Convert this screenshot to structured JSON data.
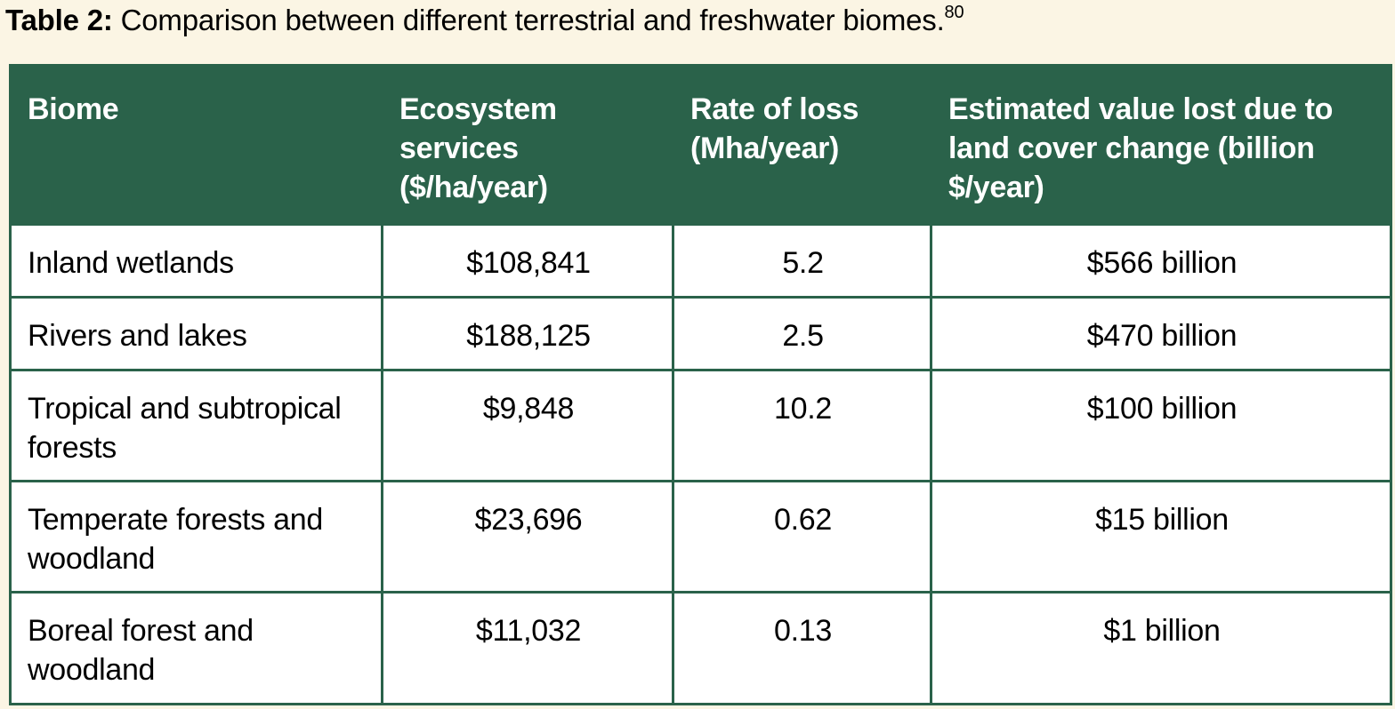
{
  "caption": {
    "label": "Table 2:",
    "text": " Comparison between different terrestrial and freshwater biomes.",
    "footnote": "80"
  },
  "colors": {
    "header_bg": "#2a624a",
    "page_bg": "#fbf5e4",
    "cell_bg": "#ffffff"
  },
  "table": {
    "headers": [
      "Biome",
      "Ecosystem services ($/ha/year)",
      "Rate of loss (Mha/year)",
      "Estimated value lost due to land cover change (billion $/year)"
    ],
    "rows": [
      [
        "Inland wetlands",
        "$108,841",
        "5.2",
        "$566 billion"
      ],
      [
        "Rivers and lakes",
        "$188,125",
        "2.5",
        "$470 billion"
      ],
      [
        "Tropical and subtropical forests",
        "$9,848",
        "10.2",
        "$100 billion"
      ],
      [
        "Temperate forests and woodland",
        "$23,696",
        "0.62",
        "$15 billion"
      ],
      [
        "Boreal forest and woodland",
        "$11,032",
        "0.13",
        "$1 billion"
      ]
    ]
  }
}
